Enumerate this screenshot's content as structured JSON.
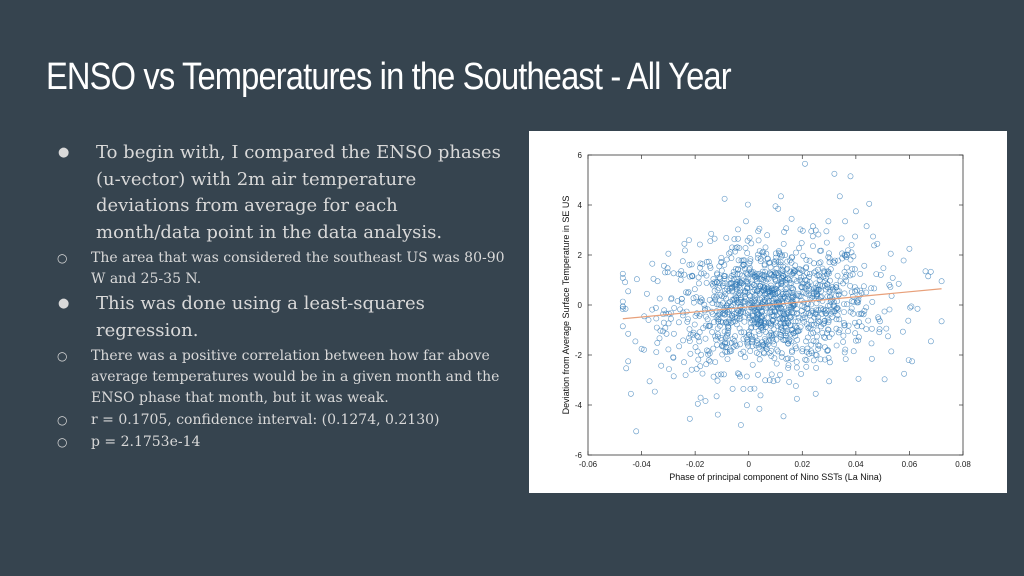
{
  "slide": {
    "title": "ENSO vs Temperatures in the Southeast - All Year",
    "bullets": [
      {
        "text": "To begin with, I compared the ENSO phases (u-vector) with 2m air temperature deviations from average for each month/data point in the data analysis.",
        "sub": [
          "The area that was considered the southeast US was 80-90 W and 25-35 N."
        ]
      },
      {
        "text": "This was done using a least-squares regression.",
        "sub": [
          "There was a positive correlation between how far above average temperatures would be in a given month and the ENSO phase that month, but it was weak.",
          "r = 0.1705, confidence interval: (0.1274, 0.2130)",
          "p = 2.1753e-14"
        ]
      }
    ],
    "bullet_symbol": "●",
    "sub_bullet_symbol": "○"
  },
  "colors": {
    "background": "#36444f",
    "title": "#ffffff",
    "text": "#d9d9d9",
    "marker": "#2f78b5",
    "fit_line": "#e8a07a"
  },
  "chart_data": {
    "type": "scatter",
    "xlabel": "Phase of principal component of Nino SSTs (La Nina)",
    "ylabel": "Deviation from Average Surface Temperature in SE US",
    "xlim": [
      -0.06,
      0.08
    ],
    "ylim": [
      -6,
      6
    ],
    "xticks": [
      "-0.06",
      "-0.04",
      "-0.02",
      "0",
      "0.02",
      "0.04",
      "0.06",
      "0.08"
    ],
    "yticks": [
      "6",
      "4",
      "2",
      "0",
      "-2",
      "-4",
      "-6"
    ],
    "xtick_values": [
      -0.06,
      -0.04,
      -0.02,
      0,
      0.02,
      0.04,
      0.06,
      0.08
    ],
    "ytick_values": [
      6,
      4,
      2,
      0,
      -2,
      -4,
      -6
    ],
    "marker": "open-circle",
    "grid": false,
    "fit_line": {
      "x": [
        -0.047,
        0.072
      ],
      "y": [
        -0.55,
        0.65
      ]
    },
    "points": [
      [
        0.021,
        5.65
      ],
      [
        0.032,
        5.25
      ],
      [
        0.038,
        5.15
      ],
      [
        0.012,
        4.35
      ],
      [
        0.034,
        4.35
      ],
      [
        -0.009,
        4.25
      ],
      [
        0.045,
        4.05
      ],
      [
        0.01,
        3.95
      ],
      [
        0.011,
        3.85
      ],
      [
        0.04,
        3.75
      ],
      [
        0.06,
        2.25
      ],
      [
        0.066,
        1.35
      ],
      [
        0.067,
        1.15
      ],
      [
        0.072,
        0.95
      ],
      [
        0.063,
        -0.15
      ],
      [
        0.072,
        -0.65
      ],
      [
        0.068,
        -1.45
      ],
      [
        0.061,
        -2.25
      ],
      [
        0.058,
        -2.75
      ],
      [
        -0.047,
        1.25
      ],
      [
        -0.045,
        0.55
      ],
      [
        -0.046,
        -0.15
      ],
      [
        -0.047,
        -0.85
      ],
      [
        -0.045,
        -1.15
      ],
      [
        -0.04,
        -1.75
      ],
      [
        -0.045,
        -2.25
      ],
      [
        -0.044,
        -3.55
      ],
      [
        -0.042,
        -5.05
      ],
      [
        -0.037,
        -3.05
      ],
      [
        -0.022,
        -4.55
      ],
      [
        -0.019,
        -3.95
      ],
      [
        -0.012,
        -3.65
      ],
      [
        0.004,
        -4.15
      ],
      [
        0.013,
        -4.45
      ],
      [
        0.025,
        -3.55
      ],
      [
        0.03,
        -3.05
      ],
      [
        0.041,
        -2.95
      ],
      [
        0.046,
        -2.15
      ],
      [
        -0.028,
        -2.85
      ],
      [
        -0.006,
        -3.35
      ],
      [
        0.018,
        -3.75
      ],
      [
        -0.03,
        2.05
      ],
      [
        -0.024,
        2.45
      ],
      [
        -0.014,
        2.85
      ],
      [
        0.004,
        3.05
      ],
      [
        -0.001,
        3.35
      ],
      [
        0.024,
        3.15
      ],
      [
        0.029,
        2.95
      ],
      [
        0.048,
        2.45
      ],
      [
        0.053,
        2.05
      ],
      [
        -0.004,
        2.65
      ],
      [
        0.016,
        3.45
      ],
      [
        0.036,
        3.35
      ],
      [
        0.044,
        3.15
      ],
      [
        -0.036,
        1.65
      ],
      [
        0.056,
        0.85
      ],
      [
        0.052,
        -1.25
      ],
      [
        0.049,
        -0.65
      ],
      [
        -0.039,
        -0.45
      ],
      [
        -0.034,
        0.95
      ],
      [
        0.001,
        0.15
      ],
      [
        0.005,
        -0.25
      ],
      [
        -0.01,
        0.35
      ],
      [
        0.014,
        0.45
      ],
      [
        -0.018,
        -0.35
      ],
      [
        0.022,
        -0.15
      ],
      [
        -0.005,
        0.75
      ],
      [
        0.009,
        -0.65
      ],
      [
        0.027,
        0.55
      ],
      [
        -0.025,
        0.25
      ],
      [
        0.033,
        0.15
      ],
      [
        -0.015,
        -0.85
      ],
      [
        0.018,
        0.95
      ],
      [
        -0.029,
        -0.55
      ],
      [
        0.039,
        -0.35
      ],
      [
        0.003,
        1.25
      ],
      [
        -0.008,
        -1.25
      ],
      [
        0.015,
        -1.45
      ],
      [
        -0.021,
        1.15
      ],
      [
        0.028,
        1.35
      ],
      [
        -0.032,
        -1.05
      ],
      [
        0.043,
        0.75
      ],
      [
        0.007,
        1.85
      ],
      [
        -0.011,
        1.55
      ],
      [
        0.02,
        -1.85
      ],
      [
        -0.003,
        -1.95
      ],
      [
        0.031,
        -1.15
      ],
      [
        -0.026,
        -1.65
      ],
      [
        0.046,
        -0.95
      ],
      [
        -0.038,
        0.45
      ]
    ]
  }
}
